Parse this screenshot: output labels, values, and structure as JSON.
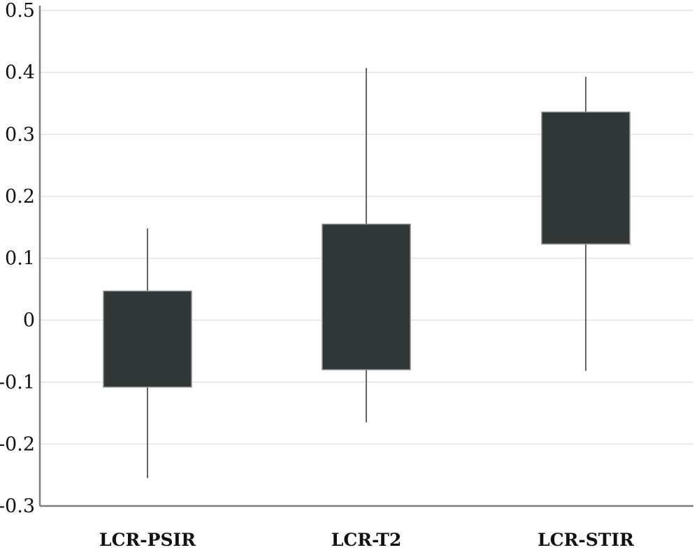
{
  "chart_data": {
    "type": "box",
    "title": "",
    "xlabel": "",
    "ylabel": "",
    "ylim": [
      -0.3,
      0.5
    ],
    "y_ticks": [
      {
        "value": 0.5,
        "label": "0.5"
      },
      {
        "value": 0.4,
        "label": "0.4"
      },
      {
        "value": 0.3,
        "label": "0.3"
      },
      {
        "value": 0.2,
        "label": "0.2"
      },
      {
        "value": 0.1,
        "label": "0.1"
      },
      {
        "value": 0.0,
        "label": "0"
      },
      {
        "value": -0.1,
        "label": "-0.1"
      },
      {
        "value": -0.2,
        "label": "-0.2"
      },
      {
        "value": -0.3,
        "label": "-0.3"
      }
    ],
    "grid": true,
    "categories": [
      "LCR-PSIR",
      "LCR-T2",
      "LCR-STIR"
    ],
    "boxes": [
      {
        "category": "LCR-PSIR",
        "whisker_low": -0.255,
        "q1": -0.108,
        "q3": 0.047,
        "whisker_high": 0.148
      },
      {
        "category": "LCR-T2",
        "whisker_low": -0.165,
        "q1": -0.08,
        "q3": 0.155,
        "whisker_high": 0.407
      },
      {
        "category": "LCR-STIR",
        "whisker_low": -0.082,
        "q1": 0.123,
        "q3": 0.336,
        "whisker_high": 0.393
      }
    ],
    "colors": {
      "box_fill": "#313636",
      "whisker": "#3a3f3f",
      "axis": "#7a7f7f",
      "grid": "#e4e4e4"
    }
  }
}
